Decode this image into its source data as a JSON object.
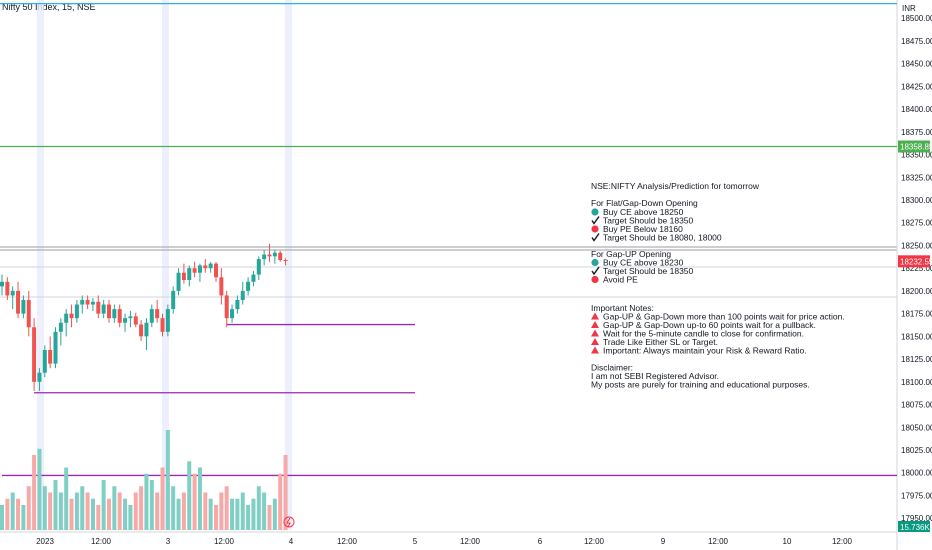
{
  "symbol_title": "Nifty 50 Index, 15, NSE",
  "currency": "INR",
  "price_axis": {
    "ticks": [
      "18500.00",
      "18475.00",
      "18450.00",
      "18425.00",
      "18400.00",
      "18375.00",
      "18350.00",
      "18325.00",
      "18300.00",
      "18275.00",
      "18250.00",
      "18225.00",
      "18200.00",
      "18175.00",
      "18150.00",
      "18125.00",
      "18100.00",
      "18075.00",
      "18050.00",
      "18025.00",
      "18000.00",
      "17975.00",
      "17950.00"
    ],
    "tag_green": "18358.85",
    "tag_red": "18232.55",
    "tag_volume": "15.736K"
  },
  "time_axis": [
    "2023",
    "12:00",
    "3",
    "12:00",
    "4",
    "12:00",
    "5",
    "12:00",
    "6",
    "12:00",
    "9",
    "12:00",
    "10",
    "12:00"
  ],
  "colors": {
    "up": "#26a69a",
    "down": "#ef5350",
    "vol_up": "#7fcfc5",
    "vol_down": "#f7a9a7",
    "blue_line": "#2bb3e3",
    "green_line": "#4caf50",
    "purple_line": "#9c27b0",
    "tag_green": "#4caf50",
    "tag_red": "#f23645",
    "tag_volume": "#089981"
  },
  "analysis": {
    "title": "NSE:NIFTY Analysis/Prediction for tomorrow",
    "flat_heading": "For Flat/Gap-Down Opening",
    "flat_items": [
      {
        "icon": "green-circle",
        "text": "Buy CE above 18250"
      },
      {
        "icon": "check",
        "text": "Target Should be 18350"
      },
      {
        "icon": "red-circle",
        "text": "Buy PE Below 18160"
      },
      {
        "icon": "check",
        "text": "Target Should be 18080, 18000"
      }
    ],
    "gapup_heading": "For Gap-UP Opening",
    "gapup_items": [
      {
        "icon": "green-circle",
        "text": "Buy CE above 18230"
      },
      {
        "icon": "check",
        "text": "Target Should be 18350"
      },
      {
        "icon": "red-circle",
        "text": "Avoid PE"
      }
    ],
    "notes_heading": "Important Notes:",
    "notes": [
      "Gap-UP & Gap-Down more than 100 points wait for price action.",
      "Gap-UP & Gap-Down up-to 60 points wait for a pullback.",
      "Wait for the 5-minute candle to close for confirmation.",
      "Trade Like Either SL or Target.",
      "Important: Always maintain your Risk & Reward Ratio."
    ],
    "disclaimer_heading": "Disclaimer:",
    "disclaimer_lines": [
      "I am not SEBI Registered Advisor.",
      "My posts are purely for training and educational purposes."
    ]
  },
  "chart_data": {
    "type": "candlestick",
    "y_range": [
      17937,
      18520
    ],
    "horizontal_lines": [
      {
        "price": 18516,
        "color": "blue"
      },
      {
        "price": 18358.85,
        "color": "green"
      },
      {
        "price": 18163,
        "color": "purple",
        "from_bar": 42,
        "to_bar": 75
      },
      {
        "price": 18088,
        "color": "purple",
        "from_bar": 6,
        "to_bar": 75
      },
      {
        "price": 17997,
        "color": "purple",
        "from_bar": 0,
        "to_bar": 165
      }
    ],
    "candles": [
      [
        18205,
        18218,
        18195,
        18210
      ],
      [
        18210,
        18215,
        18190,
        18195
      ],
      [
        18195,
        18205,
        18180,
        18200
      ],
      [
        18200,
        18210,
        18170,
        18175
      ],
      [
        18175,
        18195,
        18170,
        18190
      ],
      [
        18190,
        18200,
        18150,
        18160
      ],
      [
        18160,
        18170,
        18090,
        18100
      ],
      [
        18100,
        18115,
        18090,
        18110
      ],
      [
        18110,
        18140,
        18105,
        18135
      ],
      [
        18135,
        18150,
        18115,
        18120
      ],
      [
        18120,
        18160,
        18115,
        18155
      ],
      [
        18155,
        18170,
        18140,
        18165
      ],
      [
        18165,
        18180,
        18150,
        18175
      ],
      [
        18175,
        18185,
        18160,
        18170
      ],
      [
        18170,
        18190,
        18165,
        18185
      ],
      [
        18185,
        18195,
        18175,
        18190
      ],
      [
        18190,
        18195,
        18180,
        18185
      ],
      [
        18185,
        18192,
        18178,
        18188
      ],
      [
        18188,
        18195,
        18170,
        18175
      ],
      [
        18175,
        18190,
        18170,
        18185
      ],
      [
        18185,
        18190,
        18165,
        18170
      ],
      [
        18170,
        18185,
        18165,
        18180
      ],
      [
        18180,
        18185,
        18160,
        18165
      ],
      [
        18165,
        18175,
        18155,
        18170
      ],
      [
        18170,
        18178,
        18160,
        18172
      ],
      [
        18172,
        18176,
        18160,
        18163
      ],
      [
        18163,
        18168,
        18145,
        18150
      ],
      [
        18150,
        18170,
        18135,
        18165
      ],
      [
        18165,
        18185,
        18160,
        18180
      ],
      [
        18180,
        18190,
        18165,
        18170
      ],
      [
        18170,
        18175,
        18150,
        18155
      ],
      [
        18155,
        18185,
        18150,
        18180
      ],
      [
        18180,
        18205,
        18175,
        18200
      ],
      [
        18200,
        18225,
        18195,
        18220
      ],
      [
        18220,
        18230,
        18208,
        18212
      ],
      [
        18212,
        18228,
        18205,
        18225
      ],
      [
        18225,
        18232,
        18215,
        18220
      ],
      [
        18220,
        18230,
        18210,
        18228
      ],
      [
        18228,
        18235,
        18220,
        18225
      ],
      [
        18225,
        18232,
        18220,
        18230
      ],
      [
        18230,
        18232,
        18210,
        18215
      ],
      [
        18215,
        18225,
        18185,
        18195
      ],
      [
        18195,
        18200,
        18160,
        18170
      ],
      [
        18170,
        18185,
        18165,
        18180
      ],
      [
        18180,
        18195,
        18175,
        18190
      ],
      [
        18190,
        18210,
        18185,
        18200
      ],
      [
        18200,
        18215,
        18195,
        18210
      ],
      [
        18210,
        18222,
        18205,
        18218
      ],
      [
        18218,
        18238,
        18212,
        18235
      ],
      [
        18235,
        18245,
        18228,
        18240
      ],
      [
        18240,
        18252,
        18232,
        18238
      ],
      [
        18238,
        18245,
        18230,
        18242
      ],
      [
        18242,
        18244,
        18232,
        18234
      ],
      [
        18234,
        18236,
        18228,
        18233
      ]
    ],
    "volume_bars": [
      4,
      5,
      6,
      5,
      4,
      7,
      12,
      13,
      7,
      6,
      8,
      6,
      10,
      5,
      6,
      7,
      6,
      5,
      4,
      8,
      5,
      7,
      6,
      5,
      4,
      6,
      7,
      9,
      8,
      6,
      10,
      16,
      7,
      5,
      6,
      11,
      9,
      10,
      6,
      5,
      4,
      6,
      7,
      5,
      5,
      6,
      4,
      5,
      7,
      6,
      4,
      5,
      9,
      12
    ],
    "y_label_note": ""
  }
}
